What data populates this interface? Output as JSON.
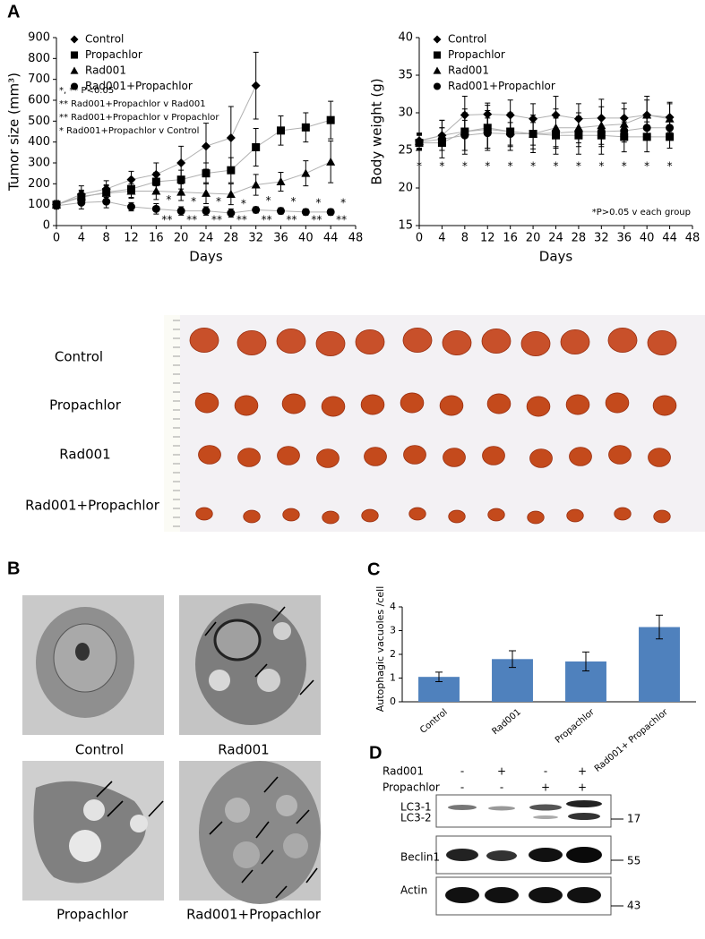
{
  "panel_labels": [
    "A",
    "B",
    "C",
    "D"
  ],
  "chart_data": [
    {
      "type": "line",
      "ylabel": "Tumor size (mm³)",
      "xlabel": "Days",
      "x": [
        0,
        4,
        8,
        12,
        16,
        20,
        24,
        28,
        32,
        36,
        40,
        44
      ],
      "xlim": [
        0,
        48
      ],
      "xticks": [
        0,
        4,
        8,
        12,
        16,
        20,
        24,
        28,
        32,
        36,
        40,
        44,
        48
      ],
      "ylim": [
        0,
        900
      ],
      "yticks": [
        0,
        100,
        200,
        300,
        400,
        500,
        600,
        700,
        800,
        900
      ],
      "series": [
        {
          "name": "Control",
          "color": "#000000",
          "marker": "diamond",
          "values": [
            100,
            150,
            175,
            220,
            245,
            300,
            380,
            420,
            670,
            null,
            null,
            null
          ],
          "errors": [
            20,
            40,
            40,
            40,
            55,
            80,
            110,
            150,
            160,
            null,
            null,
            null
          ]
        },
        {
          "name": "Propachlor",
          "color": "#000000",
          "marker": "square",
          "values": [
            100,
            135,
            160,
            175,
            210,
            220,
            250,
            265,
            375,
            455,
            470,
            505
          ],
          "errors": [
            15,
            30,
            35,
            40,
            45,
            45,
            50,
            60,
            90,
            70,
            70,
            90
          ]
        },
        {
          "name": "Rad001",
          "color": "#000000",
          "marker": "triangle",
          "values": [
            100,
            140,
            155,
            165,
            165,
            160,
            155,
            150,
            195,
            210,
            250,
            305
          ],
          "errors": [
            15,
            30,
            35,
            35,
            40,
            40,
            50,
            50,
            50,
            45,
            60,
            100
          ]
        },
        {
          "name": "Rad001+Propachlor",
          "color": "#000000",
          "marker": "circle",
          "values": [
            95,
            110,
            115,
            90,
            80,
            70,
            70,
            60,
            75,
            70,
            65,
            65
          ],
          "errors": [
            15,
            30,
            30,
            20,
            25,
            20,
            20,
            20,
            15,
            15,
            15,
            15
          ]
        }
      ],
      "sig_above": [
        null,
        null,
        null,
        null,
        "*",
        "*",
        "*",
        "*",
        "*",
        "*",
        "*",
        "*"
      ],
      "sig_below": [
        null,
        null,
        null,
        null,
        "**",
        "**",
        "**",
        "**",
        "**",
        "**",
        "**",
        "**"
      ],
      "annotations": [
        "*, ** P<0.05",
        "** Rad001+Propachlor v Rad001",
        "** Rad001+Propachlor v Propachlor",
        "*  Rad001+Propachlor v Control"
      ]
    },
    {
      "type": "line",
      "ylabel": "Body weight (g)",
      "xlabel": "Days",
      "x": [
        0,
        4,
        8,
        12,
        16,
        20,
        24,
        28,
        32,
        36,
        40,
        44
      ],
      "xlim": [
        0,
        48
      ],
      "xticks": [
        0,
        4,
        8,
        12,
        16,
        20,
        24,
        28,
        32,
        36,
        40,
        44,
        48
      ],
      "ylim": [
        15,
        40
      ],
      "yticks": [
        15,
        20,
        25,
        30,
        35,
        40
      ],
      "series": [
        {
          "name": "Control",
          "color": "#000000",
          "marker": "diamond",
          "values": [
            26.3,
            27,
            29.7,
            29.8,
            29.7,
            29.2,
            29.7,
            29.2,
            29.3,
            29.3,
            29.7,
            29.4
          ],
          "errors": [
            1,
            2,
            2.5,
            1.5,
            2,
            2,
            2.5,
            2,
            2.5,
            2,
            2.5,
            2
          ]
        },
        {
          "name": "Propachlor",
          "color": "#000000",
          "marker": "square",
          "values": [
            26,
            26,
            27.5,
            28,
            27.5,
            27.2,
            27,
            27,
            27,
            26.8,
            26.8,
            26.8
          ],
          "errors": [
            1,
            2,
            3,
            3,
            2.5,
            2.5,
            2.5,
            2.5,
            2.5,
            2,
            2,
            1.5
          ]
        },
        {
          "name": "Rad001",
          "color": "#000000",
          "marker": "triangle",
          "values": [
            26.2,
            27,
            27.5,
            27.8,
            27.5,
            27.2,
            28,
            28,
            28.3,
            28.5,
            29.7,
            29.2
          ],
          "errors": [
            1,
            2,
            2.5,
            2.5,
            2,
            2,
            2.5,
            2,
            2.5,
            2,
            2,
            2
          ]
        },
        {
          "name": "Rad001+Propachlor",
          "color": "#000000",
          "marker": "circle",
          "values": [
            26.1,
            26.5,
            27,
            27.3,
            27.2,
            27.2,
            27.3,
            27.5,
            27.5,
            27.6,
            28,
            28
          ],
          "errors": [
            1,
            1.5,
            2,
            2,
            1.5,
            1.5,
            2,
            2,
            2,
            1.5,
            1.5,
            1.5
          ]
        }
      ],
      "sig_below": [
        "*",
        "*",
        "*",
        "*",
        "*",
        "*",
        "*",
        "*",
        "*",
        "*",
        "*",
        "*"
      ],
      "annotations": [
        "*P>0.05 v each group"
      ]
    },
    {
      "type": "bar",
      "ylabel": "Autophagic vacuoles /cell",
      "categories": [
        "Control",
        "Rad001",
        "Propachlor",
        "Rad001+ Propachlor"
      ],
      "values": [
        1.05,
        1.8,
        1.7,
        3.15
      ],
      "errors": [
        0.2,
        0.35,
        0.4,
        0.5
      ],
      "color": "#4f81bd",
      "ylim": [
        0,
        4
      ],
      "yticks": [
        0,
        1,
        2,
        3,
        4
      ]
    }
  ],
  "tumor_photo": {
    "rows": [
      "Control",
      "Propachlor",
      "Rad001",
      "Rad001+Propachlor"
    ]
  },
  "em_images": {
    "labels": [
      "Control",
      "Rad001",
      "Propachlor",
      "Rad001+Propachlor"
    ]
  },
  "western_blot": {
    "treatments": [
      {
        "name": "Rad001",
        "signs": [
          "-",
          "+",
          "-",
          "+"
        ]
      },
      {
        "name": "Propachlor",
        "signs": [
          "-",
          "-",
          "+",
          "+"
        ]
      }
    ],
    "bands": [
      "LC3-1",
      "LC3-2",
      "Beclin1",
      "Actin"
    ],
    "markers": [
      "17",
      "55",
      "43"
    ]
  }
}
